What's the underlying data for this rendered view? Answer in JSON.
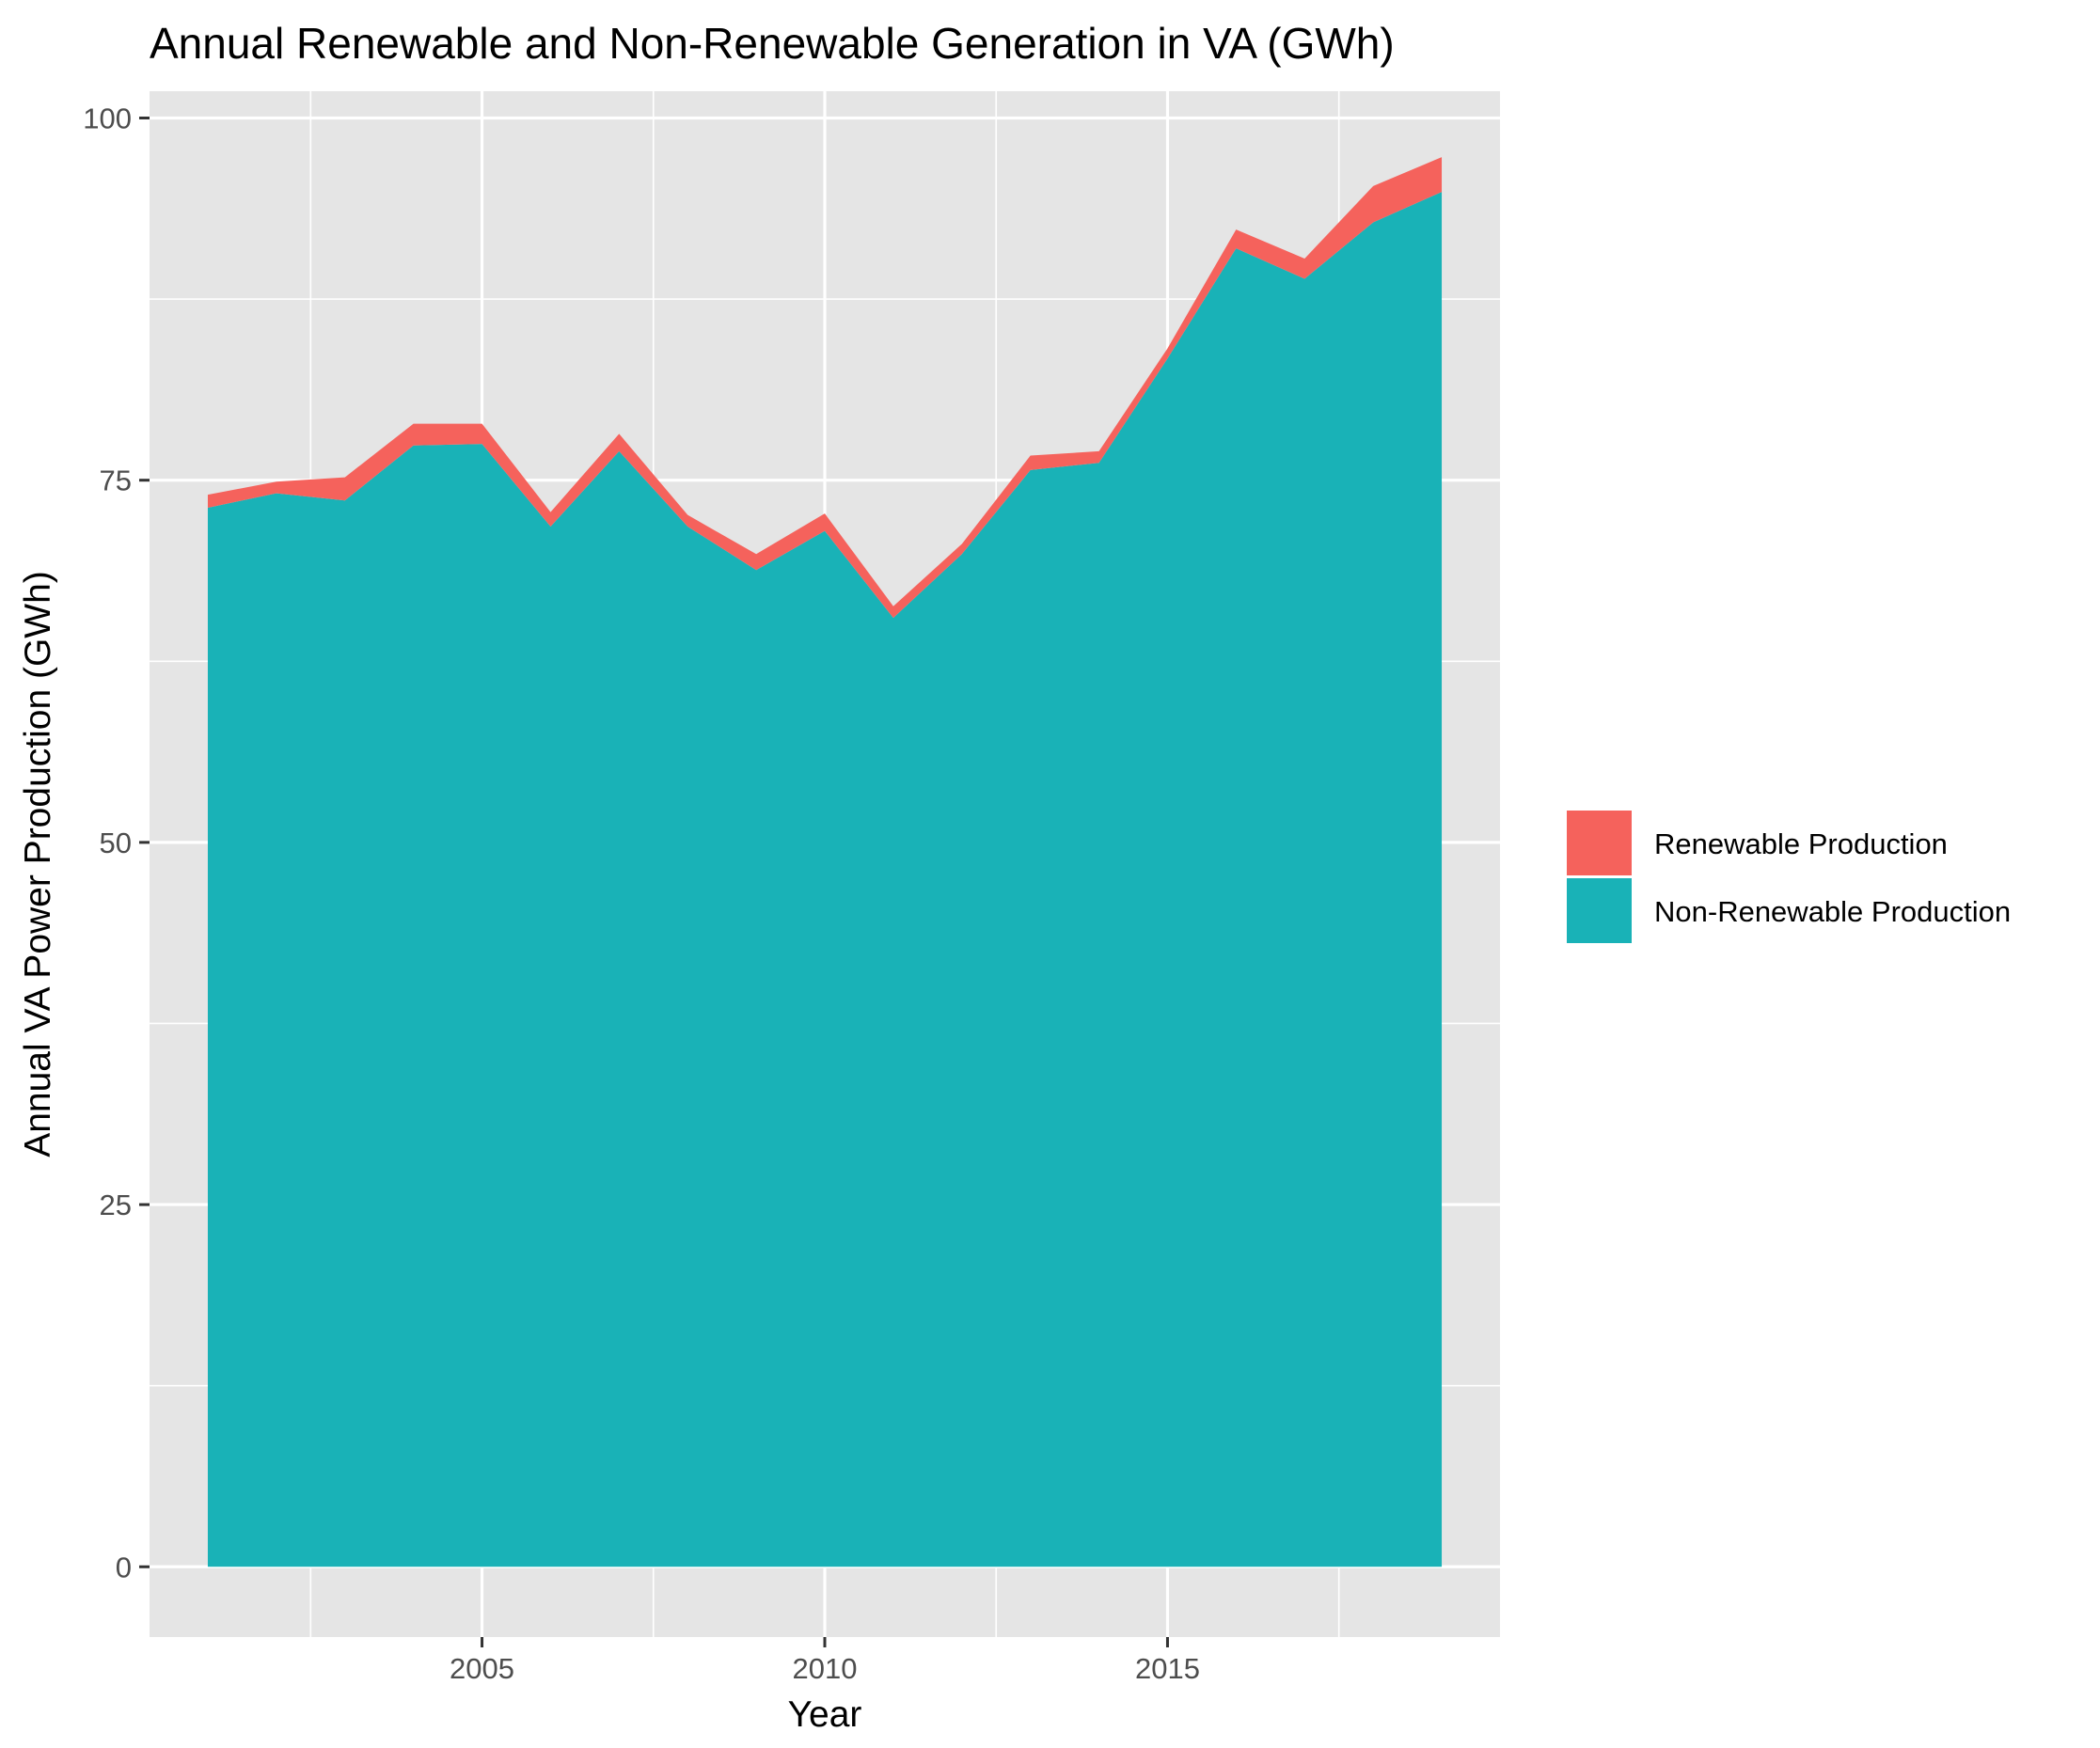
{
  "chart_data": {
    "type": "area",
    "stacked": true,
    "title": "Annual Renewable and Non-Renewable Generation in VA (GWh)",
    "xlabel": "Year",
    "ylabel": "Annual VA Power Production (GWh)",
    "x": [
      2001,
      2002,
      2003,
      2004,
      2005,
      2006,
      2007,
      2008,
      2009,
      2010,
      2011,
      2012,
      2013,
      2014,
      2015,
      2016,
      2017,
      2018,
      2019
    ],
    "series": [
      {
        "name": "Non-Renewable Production",
        "color": "#19B2B7",
        "values": [
          73.1,
          74.1,
          73.6,
          77.4,
          77.5,
          71.8,
          77.0,
          71.8,
          68.8,
          71.5,
          65.5,
          69.9,
          75.7,
          76.2,
          83.4,
          91.0,
          88.9,
          92.8,
          94.9
        ]
      },
      {
        "name": "Renewable Production",
        "color": "#F5625C",
        "values": [
          0.9,
          0.8,
          1.6,
          1.5,
          1.4,
          1.0,
          1.2,
          0.8,
          1.1,
          1.2,
          0.8,
          0.7,
          1.0,
          0.8,
          0.7,
          1.3,
          1.4,
          2.5,
          2.4
        ]
      }
    ],
    "xlim": [
      2000.15,
      2019.85
    ],
    "ylim": [
      -4.85,
      101.85
    ],
    "xticks": [
      2005,
      2010,
      2015
    ],
    "xtick_labels": [
      "2005",
      "2010",
      "2015"
    ],
    "xminor": [
      2002.5,
      2007.5,
      2012.5,
      2017.5
    ],
    "yticks": [
      0,
      25,
      50,
      75,
      100
    ],
    "ytick_labels": [
      "0",
      "25",
      "50",
      "75",
      "100"
    ],
    "yminor": [
      12.5,
      37.5,
      62.5,
      87.5
    ],
    "grid": true,
    "panel_background": "#E5E5E5",
    "legend_position": "right",
    "legend_order": [
      "Renewable Production",
      "Non-Renewable Production"
    ]
  }
}
